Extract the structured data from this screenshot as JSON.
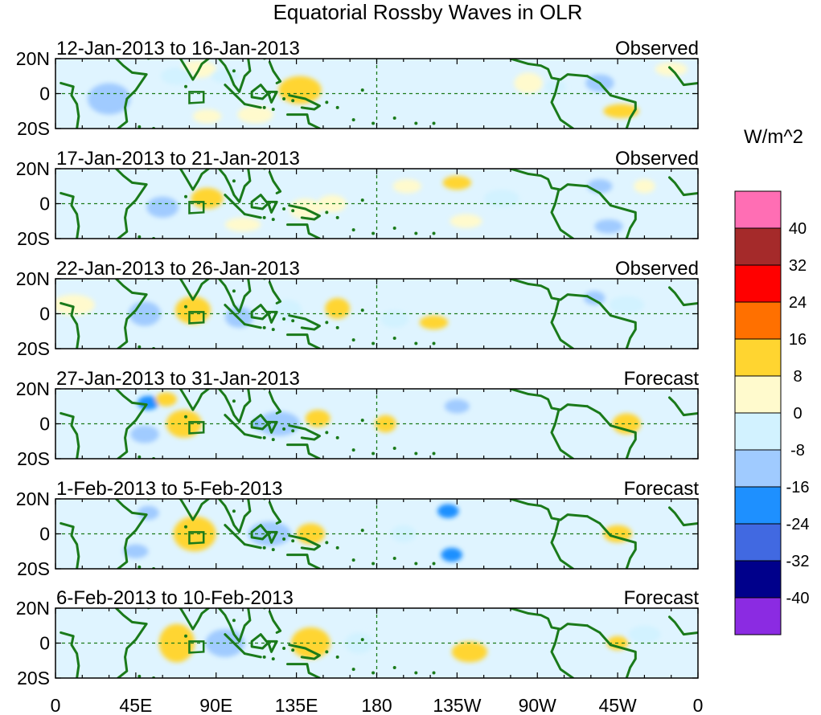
{
  "chart_data": {
    "type": "heatmap",
    "title": "Equatorial Rossby Waves in OLR",
    "units": "W/m^2",
    "x_ticks": [
      "0",
      "45E",
      "90E",
      "135E",
      "180",
      "135W",
      "90W",
      "45W",
      "0"
    ],
    "x_tick_lon": [
      0,
      45,
      90,
      135,
      180,
      225,
      270,
      315,
      360
    ],
    "xlim": [
      0,
      360
    ],
    "y_ticks": [
      "20N",
      "0",
      "20S"
    ],
    "y_tick_lat": [
      20,
      0,
      -20
    ],
    "ylim": [
      -20,
      20
    ],
    "colorbar": {
      "levels": [
        -40,
        -32,
        -24,
        -16,
        -8,
        0,
        8,
        16,
        24,
        32,
        40
      ],
      "labels": [
        "40",
        "32",
        "24",
        "16",
        "8",
        "0",
        "-8",
        "-16",
        "-24",
        "-32",
        "-40"
      ],
      "colors": [
        "#8b2be2",
        "#00008b",
        "#4169e1",
        "#1e90ff",
        "#a0cbff",
        "#d2f2ff",
        "#fffacd",
        "#ffd530",
        "#ff7000",
        "#ff0000",
        "#a52a2a",
        "#ff6eb4"
      ]
    },
    "reference_box": {
      "lon": [
        75,
        83
      ],
      "lat": [
        -5,
        1
      ]
    },
    "panels": [
      {
        "period": "12-Jan-2013 to 16-Jan-2013",
        "status": "Observed",
        "anomalies": [
          {
            "lon": 137,
            "lat": 2,
            "value": 11,
            "sx": 12,
            "sy": 8
          },
          {
            "lon": 112,
            "lat": -12,
            "value": 6,
            "sx": 10,
            "sy": 5
          },
          {
            "lon": 80,
            "lat": 14,
            "value": 6,
            "sx": 10,
            "sy": 5
          },
          {
            "lon": 85,
            "lat": -13,
            "value": 6,
            "sx": 8,
            "sy": 4
          },
          {
            "lon": 68,
            "lat": 10,
            "value": -8,
            "sx": 9,
            "sy": 5
          },
          {
            "lon": 95,
            "lat": 10,
            "value": -7,
            "sx": 8,
            "sy": 4
          },
          {
            "lon": 30,
            "lat": -3,
            "value": -9,
            "sx": 12,
            "sy": 9
          },
          {
            "lon": 265,
            "lat": 6,
            "value": 7,
            "sx": 8,
            "sy": 6
          },
          {
            "lon": 280,
            "lat": 4,
            "value": -8,
            "sx": 6,
            "sy": 4
          },
          {
            "lon": 305,
            "lat": 6,
            "value": -9,
            "sx": 8,
            "sy": 5
          },
          {
            "lon": 317,
            "lat": -10,
            "value": 8,
            "sx": 10,
            "sy": 4
          },
          {
            "lon": 345,
            "lat": 14,
            "value": 6,
            "sx": 9,
            "sy": 4
          }
        ]
      },
      {
        "period": "17-Jan-2013 to 21-Jan-2013",
        "status": "Observed",
        "anomalies": [
          {
            "lon": 85,
            "lat": 3,
            "value": 10,
            "sx": 9,
            "sy": 6
          },
          {
            "lon": 60,
            "lat": -2,
            "value": -9,
            "sx": 9,
            "sy": 6
          },
          {
            "lon": 140,
            "lat": -3,
            "value": 6,
            "sx": 9,
            "sy": 6
          },
          {
            "lon": 155,
            "lat": 0,
            "value": 7,
            "sx": 8,
            "sy": 5
          },
          {
            "lon": 105,
            "lat": -12,
            "value": 7,
            "sx": 10,
            "sy": 4
          },
          {
            "lon": 197,
            "lat": 10,
            "value": 7,
            "sx": 8,
            "sy": 4
          },
          {
            "lon": 225,
            "lat": 12,
            "value": 8,
            "sx": 8,
            "sy": 4
          },
          {
            "lon": 230,
            "lat": -10,
            "value": 7,
            "sx": 9,
            "sy": 4
          },
          {
            "lon": 305,
            "lat": 10,
            "value": -14,
            "sx": 7,
            "sy": 4
          },
          {
            "lon": 310,
            "lat": -13,
            "value": -14,
            "sx": 8,
            "sy": 4
          },
          {
            "lon": 330,
            "lat": 10,
            "value": 6,
            "sx": 6,
            "sy": 4
          },
          {
            "lon": 250,
            "lat": 3,
            "value": -6,
            "sx": 10,
            "sy": 5
          }
        ]
      },
      {
        "period": "22-Jan-2013 to 26-Jan-2013",
        "status": "Observed",
        "anomalies": [
          {
            "lon": 77,
            "lat": 2,
            "value": 20,
            "sx": 6,
            "sy": 5
          },
          {
            "lon": 77,
            "lat": 2,
            "value": 9,
            "sx": 10,
            "sy": 8
          },
          {
            "lon": 48,
            "lat": 0,
            "value": -18,
            "sx": 5,
            "sy": 4
          },
          {
            "lon": 50,
            "lat": 0,
            "value": -9,
            "sx": 9,
            "sy": 7
          },
          {
            "lon": 103,
            "lat": -2,
            "value": -9,
            "sx": 8,
            "sy": 6
          },
          {
            "lon": 130,
            "lat": 2,
            "value": -8,
            "sx": 8,
            "sy": 6
          },
          {
            "lon": 158,
            "lat": 3,
            "value": 8,
            "sx": 7,
            "sy": 6
          },
          {
            "lon": 190,
            "lat": -3,
            "value": -8,
            "sx": 8,
            "sy": 5
          },
          {
            "lon": 212,
            "lat": -5,
            "value": 8,
            "sx": 8,
            "sy": 4
          },
          {
            "lon": 302,
            "lat": 9,
            "value": -12,
            "sx": 6,
            "sy": 4
          },
          {
            "lon": 320,
            "lat": 5,
            "value": -7,
            "sx": 10,
            "sy": 5
          },
          {
            "lon": 10,
            "lat": 5,
            "value": 7,
            "sx": 12,
            "sy": 6
          }
        ]
      },
      {
        "period": "27-Jan-2013 to 31-Jan-2013",
        "status": "Forecast",
        "anomalies": [
          {
            "lon": 72,
            "lat": 0,
            "value": 20,
            "sx": 6,
            "sy": 4
          },
          {
            "lon": 72,
            "lat": 0,
            "value": 10,
            "sx": 10,
            "sy": 8
          },
          {
            "lon": 52,
            "lat": 12,
            "value": -18,
            "sx": 6,
            "sy": 4
          },
          {
            "lon": 62,
            "lat": 14,
            "value": 9,
            "sx": 6,
            "sy": 4
          },
          {
            "lon": 50,
            "lat": -6,
            "value": -9,
            "sx": 8,
            "sy": 5
          },
          {
            "lon": 118,
            "lat": 0,
            "value": -18,
            "sx": 7,
            "sy": 4
          },
          {
            "lon": 125,
            "lat": 0,
            "value": -9,
            "sx": 12,
            "sy": 7
          },
          {
            "lon": 147,
            "lat": 3,
            "value": 8,
            "sx": 7,
            "sy": 5
          },
          {
            "lon": 185,
            "lat": 0,
            "value": 8,
            "sx": 6,
            "sy": 5
          },
          {
            "lon": 225,
            "lat": 10,
            "value": -12,
            "sx": 7,
            "sy": 4
          },
          {
            "lon": 320,
            "lat": 0,
            "value": 20,
            "sx": 4,
            "sy": 3
          },
          {
            "lon": 320,
            "lat": 0,
            "value": 9,
            "sx": 8,
            "sy": 6
          }
        ]
      },
      {
        "period": "1-Feb-2013 to 5-Feb-2013",
        "status": "Forecast",
        "anomalies": [
          {
            "lon": 78,
            "lat": 0,
            "value": 23,
            "sx": 8,
            "sy": 7
          },
          {
            "lon": 78,
            "lat": 0,
            "value": 11,
            "sx": 12,
            "sy": 10
          },
          {
            "lon": 52,
            "lat": 12,
            "value": -14,
            "sx": 6,
            "sy": 4
          },
          {
            "lon": 45,
            "lat": -10,
            "value": -12,
            "sx": 7,
            "sy": 4
          },
          {
            "lon": 118,
            "lat": 0,
            "value": -20,
            "sx": 7,
            "sy": 4
          },
          {
            "lon": 120,
            "lat": 0,
            "value": -10,
            "sx": 12,
            "sy": 7
          },
          {
            "lon": 143,
            "lat": 0,
            "value": 20,
            "sx": 4,
            "sy": 3
          },
          {
            "lon": 143,
            "lat": 0,
            "value": 9,
            "sx": 8,
            "sy": 6
          },
          {
            "lon": 220,
            "lat": 13,
            "value": -18,
            "sx": 6,
            "sy": 4
          },
          {
            "lon": 222,
            "lat": -12,
            "value": -17,
            "sx": 6,
            "sy": 4
          },
          {
            "lon": 195,
            "lat": 0,
            "value": -8,
            "sx": 7,
            "sy": 5
          },
          {
            "lon": 315,
            "lat": 0,
            "value": 20,
            "sx": 4,
            "sy": 3
          },
          {
            "lon": 315,
            "lat": 0,
            "value": 9,
            "sx": 8,
            "sy": 5
          }
        ]
      },
      {
        "period": "6-Feb-2013 to 10-Feb-2013",
        "status": "Forecast",
        "anomalies": [
          {
            "lon": 68,
            "lat": 0,
            "value": 22,
            "sx": 7,
            "sy": 8
          },
          {
            "lon": 68,
            "lat": 0,
            "value": 10,
            "sx": 10,
            "sy": 11
          },
          {
            "lon": 95,
            "lat": 0,
            "value": -25,
            "sx": 5,
            "sy": 3
          },
          {
            "lon": 95,
            "lat": 0,
            "value": -12,
            "sx": 11,
            "sy": 8
          },
          {
            "lon": 143,
            "lat": 0,
            "value": 20,
            "sx": 7,
            "sy": 6
          },
          {
            "lon": 143,
            "lat": 0,
            "value": 9,
            "sx": 11,
            "sy": 9
          },
          {
            "lon": 170,
            "lat": 0,
            "value": -8,
            "sx": 8,
            "sy": 6
          },
          {
            "lon": 232,
            "lat": -5,
            "value": 8,
            "sx": 10,
            "sy": 6
          },
          {
            "lon": 315,
            "lat": 0,
            "value": 12,
            "sx": 6,
            "sy": 4
          },
          {
            "lon": 330,
            "lat": 5,
            "value": -7,
            "sx": 9,
            "sy": 5
          }
        ]
      }
    ]
  }
}
